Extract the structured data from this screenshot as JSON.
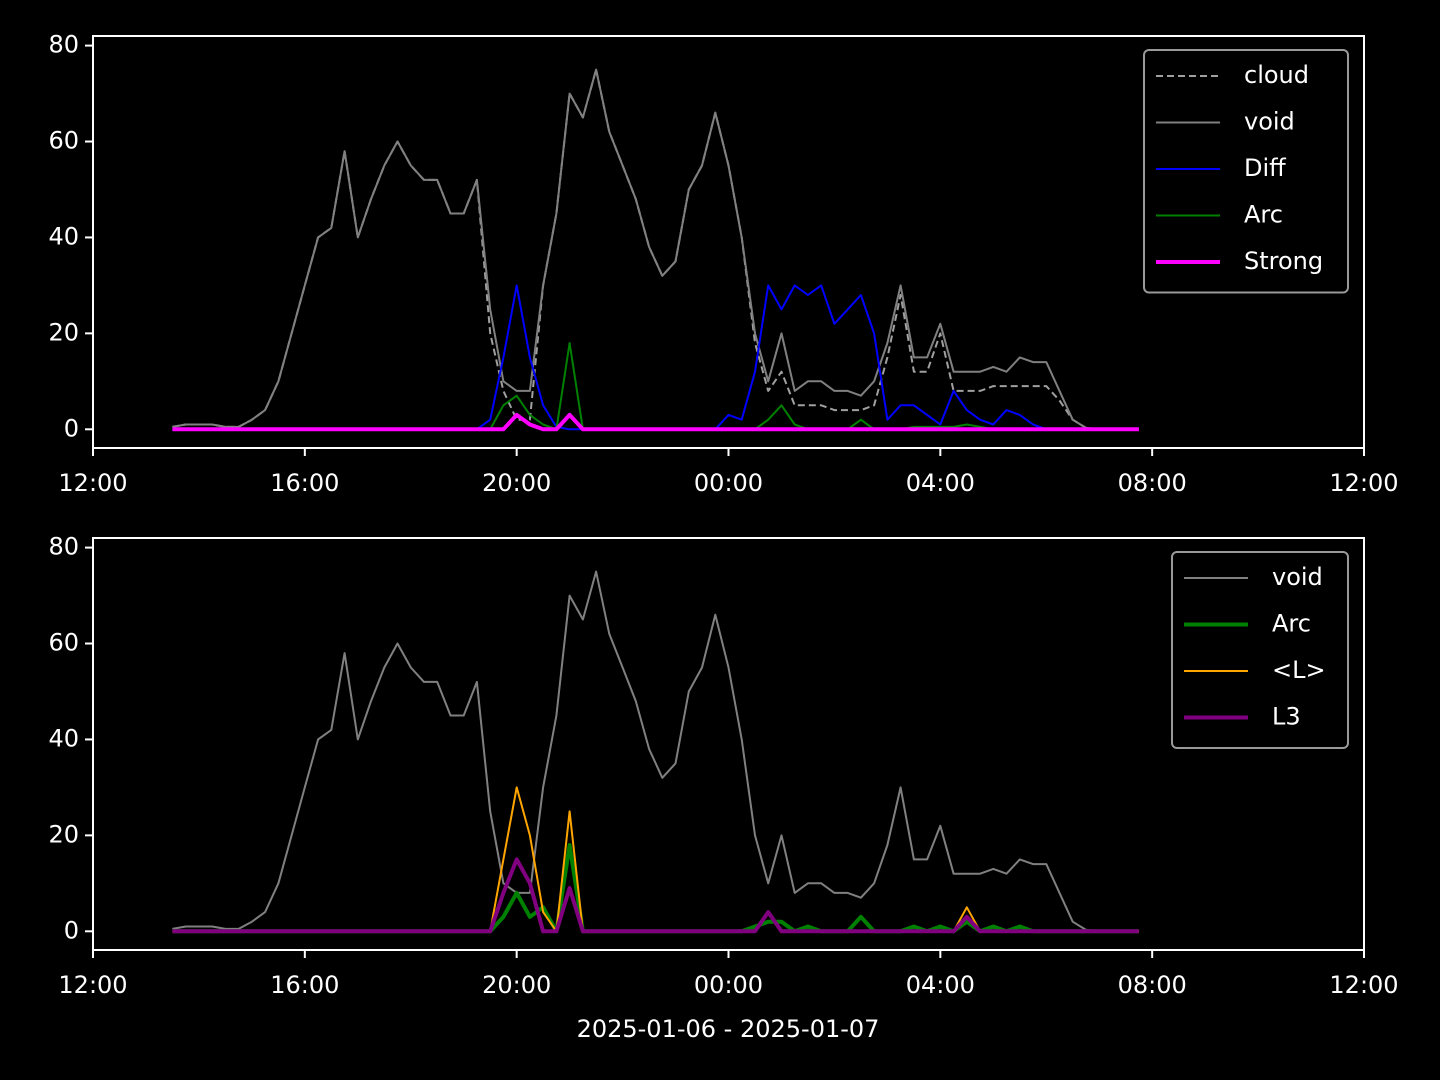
{
  "chart_data": [
    {
      "type": "line",
      "x": [
        13.5,
        13.75,
        14,
        14.25,
        14.5,
        14.75,
        15,
        15.25,
        15.5,
        15.75,
        16,
        16.25,
        16.5,
        16.75,
        17,
        17.25,
        17.5,
        17.75,
        18,
        18.25,
        18.5,
        18.75,
        19,
        19.25,
        19.5,
        19.75,
        20,
        20.25,
        20.5,
        20.75,
        21,
        21.25,
        21.5,
        21.75,
        22,
        22.25,
        22.5,
        22.75,
        23,
        23.25,
        23.5,
        23.75,
        24,
        24.25,
        24.5,
        24.75,
        25,
        25.25,
        25.5,
        25.75,
        26,
        26.25,
        26.5,
        26.75,
        27,
        27.25,
        27.5,
        27.75,
        28,
        28.25,
        28.5,
        28.75,
        29,
        29.25,
        29.5,
        29.75,
        30,
        30.25,
        30.5,
        30.75,
        31,
        31.25,
        31.5,
        31.75
      ],
      "xlim": [
        12,
        36
      ],
      "xticks": [
        {
          "value": 12,
          "label": "12:00"
        },
        {
          "value": 16,
          "label": "16:00"
        },
        {
          "value": 20,
          "label": "20:00"
        },
        {
          "value": 24,
          "label": "00:00"
        },
        {
          "value": 28,
          "label": "04:00"
        },
        {
          "value": 32,
          "label": "08:00"
        },
        {
          "value": 36,
          "label": "12:00"
        }
      ],
      "ylim": [
        -3.9,
        82
      ],
      "yticks": [
        0,
        20,
        40,
        60,
        80
      ],
      "legend": "upper right",
      "series": [
        {
          "name": "cloud",
          "color": "#a0a0a0",
          "linestyle": "dashed",
          "linewidth": 2,
          "values": [
            0.5,
            1,
            1,
            1,
            0.5,
            0.5,
            2,
            4,
            10,
            20,
            30,
            40,
            42,
            58,
            40,
            48,
            55,
            60,
            55,
            52,
            52,
            45,
            45,
            52,
            20,
            8,
            2,
            2,
            30,
            45,
            70,
            65,
            75,
            62,
            55,
            48,
            38,
            32,
            35,
            50,
            55,
            66,
            55,
            40,
            18,
            8,
            12,
            5,
            5,
            5,
            4,
            4,
            4,
            5,
            15,
            28,
            12,
            12,
            20,
            8,
            8,
            8,
            9,
            9,
            9,
            9,
            9,
            6,
            2,
            0.3,
            0,
            0,
            0,
            0
          ]
        },
        {
          "name": "void",
          "color": "#808080",
          "linestyle": "solid",
          "linewidth": 2,
          "values": [
            0.5,
            1,
            1,
            1,
            0.5,
            0.5,
            2,
            4,
            10,
            20,
            30,
            40,
            42,
            58,
            40,
            48,
            55,
            60,
            55,
            52,
            52,
            45,
            45,
            52,
            25,
            10,
            8,
            8,
            30,
            45,
            70,
            65,
            75,
            62,
            55,
            48,
            38,
            32,
            35,
            50,
            55,
            66,
            55,
            40,
            20,
            10,
            20,
            8,
            10,
            10,
            8,
            8,
            7,
            10,
            18,
            30,
            15,
            15,
            22,
            12,
            12,
            12,
            13,
            12,
            15,
            14,
            14,
            8,
            2,
            0.3,
            0,
            0,
            0,
            0
          ]
        },
        {
          "name": "Diff",
          "color": "#0000ff",
          "linestyle": "solid",
          "linewidth": 2,
          "values": [
            0,
            0,
            0,
            0,
            0,
            0,
            0,
            0,
            0,
            0,
            0,
            0,
            0,
            0,
            0,
            0,
            0,
            0,
            0,
            0,
            0,
            0,
            0,
            0,
            2,
            15,
            30,
            15,
            5,
            0.5,
            0,
            0,
            0,
            0,
            0,
            0,
            0,
            0,
            0,
            0,
            0,
            0,
            3,
            2,
            12,
            30,
            25,
            30,
            28,
            30,
            22,
            25,
            28,
            20,
            2,
            5,
            5,
            3,
            1,
            8,
            4,
            2,
            1,
            4,
            3,
            1,
            0,
            0,
            0,
            0,
            0,
            0,
            0,
            0
          ]
        },
        {
          "name": "Arc",
          "color": "#008000",
          "linestyle": "solid",
          "linewidth": 2,
          "values": [
            0,
            0,
            0,
            0,
            0,
            0,
            0,
            0,
            0,
            0,
            0,
            0,
            0,
            0,
            0,
            0,
            0,
            0,
            0,
            0,
            0,
            0,
            0,
            0,
            0,
            5,
            7,
            3,
            1,
            0,
            18,
            0,
            0,
            0,
            0,
            0,
            0,
            0,
            0,
            0,
            0,
            0,
            0,
            0,
            0,
            2,
            5,
            1,
            0,
            0,
            0,
            0,
            2,
            0,
            0,
            0,
            0.5,
            0.5,
            0.5,
            0.5,
            1,
            0.5,
            0,
            0,
            0,
            0,
            0,
            0,
            0,
            0,
            0,
            0,
            0,
            0
          ]
        },
        {
          "name": "Strong",
          "color": "#ff00ff",
          "linestyle": "solid",
          "linewidth": 4,
          "values": [
            0,
            0,
            0,
            0,
            0,
            0,
            0,
            0,
            0,
            0,
            0,
            0,
            0,
            0,
            0,
            0,
            0,
            0,
            0,
            0,
            0,
            0,
            0,
            0,
            0,
            0,
            3,
            1,
            0,
            0,
            3,
            0,
            0,
            0,
            0,
            0,
            0,
            0,
            0,
            0,
            0,
            0,
            0,
            0,
            0,
            0,
            0,
            0,
            0,
            0,
            0,
            0,
            0,
            0,
            0,
            0,
            0,
            0,
            0,
            0,
            0,
            0,
            0,
            0,
            0,
            0,
            0,
            0,
            0,
            0,
            0,
            0,
            0,
            0
          ]
        }
      ]
    },
    {
      "type": "line",
      "x": [
        13.5,
        13.75,
        14,
        14.25,
        14.5,
        14.75,
        15,
        15.25,
        15.5,
        15.75,
        16,
        16.25,
        16.5,
        16.75,
        17,
        17.25,
        17.5,
        17.75,
        18,
        18.25,
        18.5,
        18.75,
        19,
        19.25,
        19.5,
        19.75,
        20,
        20.25,
        20.5,
        20.75,
        21,
        21.25,
        21.5,
        21.75,
        22,
        22.25,
        22.5,
        22.75,
        23,
        23.25,
        23.5,
        23.75,
        24,
        24.25,
        24.5,
        24.75,
        25,
        25.25,
        25.5,
        25.75,
        26,
        26.25,
        26.5,
        26.75,
        27,
        27.25,
        27.5,
        27.75,
        28,
        28.25,
        28.5,
        28.75,
        29,
        29.25,
        29.5,
        29.75,
        30,
        30.25,
        30.5,
        30.75,
        31,
        31.25,
        31.5,
        31.75
      ],
      "xlim": [
        12,
        36
      ],
      "xticks": [
        {
          "value": 12,
          "label": "12:00"
        },
        {
          "value": 16,
          "label": "16:00"
        },
        {
          "value": 20,
          "label": "20:00"
        },
        {
          "value": 24,
          "label": "00:00"
        },
        {
          "value": 28,
          "label": "04:00"
        },
        {
          "value": 32,
          "label": "08:00"
        },
        {
          "value": 36,
          "label": "12:00"
        }
      ],
      "ylim": [
        -3.9,
        82
      ],
      "yticks": [
        0,
        20,
        40,
        60,
        80
      ],
      "xlabel": "2025-01-06 - 2025-01-07",
      "legend": "upper right",
      "series": [
        {
          "name": "void",
          "color": "#808080",
          "linestyle": "solid",
          "linewidth": 2,
          "values": [
            0.5,
            1,
            1,
            1,
            0.5,
            0.5,
            2,
            4,
            10,
            20,
            30,
            40,
            42,
            58,
            40,
            48,
            55,
            60,
            55,
            52,
            52,
            45,
            45,
            52,
            25,
            10,
            8,
            8,
            30,
            45,
            70,
            65,
            75,
            62,
            55,
            48,
            38,
            32,
            35,
            50,
            55,
            66,
            55,
            40,
            20,
            10,
            20,
            8,
            10,
            10,
            8,
            8,
            7,
            10,
            18,
            30,
            15,
            15,
            22,
            12,
            12,
            12,
            13,
            12,
            15,
            14,
            14,
            8,
            2,
            0.3,
            0,
            0,
            0,
            0
          ]
        },
        {
          "name": "Arc",
          "color": "#008000",
          "linestyle": "solid",
          "linewidth": 4,
          "values": [
            0,
            0,
            0,
            0,
            0,
            0,
            0,
            0,
            0,
            0,
            0,
            0,
            0,
            0,
            0,
            0,
            0,
            0,
            0,
            0,
            0,
            0,
            0,
            0,
            0,
            3,
            8,
            3,
            5,
            0,
            18,
            0,
            0,
            0,
            0,
            0,
            0,
            0,
            0,
            0,
            0,
            0,
            0,
            0,
            1,
            2,
            2,
            0,
            1,
            0,
            0,
            0,
            3,
            0,
            0,
            0,
            1,
            0,
            1,
            0,
            2,
            0,
            1,
            0,
            1,
            0,
            0,
            0,
            0,
            0,
            0,
            0,
            0,
            0
          ]
        },
        {
          "name": "<L>",
          "color": "#ffa500",
          "linestyle": "solid",
          "linewidth": 2,
          "values": [
            0,
            0,
            0,
            0,
            0,
            0,
            0,
            0,
            0,
            0,
            0,
            0,
            0,
            0,
            0,
            0,
            0,
            0,
            0,
            0,
            0,
            0,
            0,
            0,
            0,
            15,
            30,
            20,
            4,
            0,
            25,
            0,
            0,
            0,
            0,
            0,
            0,
            0,
            0,
            0,
            0,
            0,
            0,
            0,
            0,
            4,
            0,
            0,
            0,
            0,
            0,
            0,
            0,
            0,
            0,
            0,
            0,
            0,
            0,
            0,
            5,
            0,
            0,
            0,
            0,
            0,
            0,
            0,
            0,
            0,
            0,
            0,
            0,
            0
          ]
        },
        {
          "name": "L3",
          "color": "#800080",
          "linestyle": "solid",
          "linewidth": 4,
          "values": [
            0,
            0,
            0,
            0,
            0,
            0,
            0,
            0,
            0,
            0,
            0,
            0,
            0,
            0,
            0,
            0,
            0,
            0,
            0,
            0,
            0,
            0,
            0,
            0,
            0,
            8,
            15,
            10,
            0,
            0,
            9,
            0,
            0,
            0,
            0,
            0,
            0,
            0,
            0,
            0,
            0,
            0,
            0,
            0,
            0,
            4,
            0,
            0,
            0,
            0,
            0,
            0,
            0,
            0,
            0,
            0,
            0,
            0,
            0,
            0,
            3,
            0,
            0,
            0,
            0,
            0,
            0,
            0,
            0,
            0,
            0,
            0,
            0,
            0
          ]
        }
      ]
    }
  ]
}
